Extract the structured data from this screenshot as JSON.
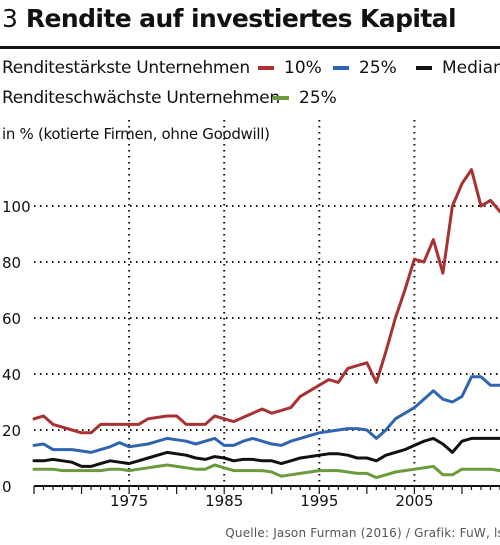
{
  "header": {
    "number": "3",
    "title": "Rendite auf investiertes Kapital"
  },
  "legend": {
    "group1_label": "Renditestärkste Unternehmen",
    "group2_label": "Renditeschwächste Unternehmen",
    "items": [
      {
        "label": "10%",
        "color": "#a83232"
      },
      {
        "label": "25%",
        "color": "#2e64b0"
      },
      {
        "label": "Median",
        "color": "#111111"
      },
      {
        "label": "25%",
        "color": "#6a9a3c"
      }
    ]
  },
  "unit_label": "in % (kotierte Firmen, ohne Goodwill)",
  "source": "Quelle: Jason Furman (2016) / Grafik: FuW, ls",
  "chart_data": {
    "type": "line",
    "xlim": [
      1965,
      2014
    ],
    "ylim": [
      0,
      120
    ],
    "y_ticks": [
      "0",
      "20",
      "40",
      "60",
      "80",
      "100"
    ],
    "x_ticks": [
      "1975",
      "1985",
      "1995",
      "2005"
    ],
    "y_tick_values": [
      0,
      20,
      40,
      60,
      80,
      100
    ],
    "x_tick_values": [
      1975,
      1985,
      1995,
      2005
    ],
    "x_gridlines": [
      1975,
      1985,
      1995,
      2005
    ],
    "grid": true,
    "x": [
      1965,
      1966,
      1967,
      1968,
      1969,
      1970,
      1971,
      1972,
      1973,
      1974,
      1975,
      1976,
      1977,
      1978,
      1979,
      1980,
      1981,
      1982,
      1983,
      1984,
      1985,
      1986,
      1987,
      1988,
      1989,
      1990,
      1991,
      1992,
      1993,
      1994,
      1995,
      1996,
      1997,
      1998,
      1999,
      2000,
      2001,
      2002,
      2003,
      2004,
      2005,
      2006,
      2007,
      2008,
      2009,
      2010,
      2011,
      2012,
      2013,
      2014
    ],
    "series": [
      {
        "name": "Renditestärkste Unternehmen 10%",
        "color": "#a83232",
        "values": [
          24,
          25,
          22,
          21,
          20,
          19,
          19,
          22,
          22,
          22,
          22,
          22,
          24,
          24.5,
          25,
          25,
          22,
          22,
          22,
          25,
          24,
          23,
          24.5,
          26,
          27.5,
          26,
          27,
          28,
          32,
          34,
          36,
          38,
          37,
          42,
          43,
          44,
          37,
          48,
          60,
          70,
          81,
          80,
          88,
          76,
          100,
          108,
          113,
          100,
          102,
          98
        ]
      },
      {
        "name": "Renditestärkste Unternehmen 25%",
        "color": "#2e64b0",
        "values": [
          14.5,
          15,
          13,
          13,
          13,
          12.5,
          12,
          13,
          14,
          15.5,
          14,
          14.5,
          15,
          16,
          17,
          16.5,
          16,
          15,
          16,
          17,
          14.5,
          14.5,
          16,
          17,
          16,
          15,
          14.5,
          16,
          17,
          18,
          19,
          19.5,
          20,
          20.5,
          20.5,
          20,
          17,
          20,
          24,
          26,
          28,
          31,
          34,
          31,
          30,
          32,
          39,
          39,
          36,
          36
        ]
      },
      {
        "name": "Median",
        "color": "#111111",
        "values": [
          9,
          9,
          9.5,
          9,
          8.5,
          7,
          7,
          8,
          9,
          8.5,
          8,
          9,
          10,
          11,
          12,
          11.5,
          11,
          10,
          9.5,
          10.5,
          10,
          9,
          9.5,
          9.5,
          9,
          9,
          8,
          9,
          10,
          10.5,
          11,
          11.5,
          11.5,
          11,
          10,
          10,
          9,
          11,
          12,
          13,
          14.5,
          16,
          17,
          15,
          12,
          16,
          17,
          17,
          17,
          17
        ]
      },
      {
        "name": "Renditeschwächste Unternehmen 25%",
        "color": "#6a9a3c",
        "values": [
          6,
          6,
          6,
          5.5,
          5.5,
          5.5,
          5.5,
          5.5,
          6,
          6,
          5.5,
          6,
          6.5,
          7,
          7.5,
          7,
          6.5,
          6,
          6,
          7.5,
          6.5,
          5.5,
          5.5,
          5.5,
          5.5,
          5,
          3.5,
          4,
          4.5,
          5,
          5.5,
          5.5,
          5.5,
          5,
          4.5,
          4.5,
          3,
          4,
          5,
          5.5,
          6,
          6.5,
          7,
          4,
          4,
          6,
          6,
          6,
          6,
          5.5
        ]
      }
    ]
  }
}
